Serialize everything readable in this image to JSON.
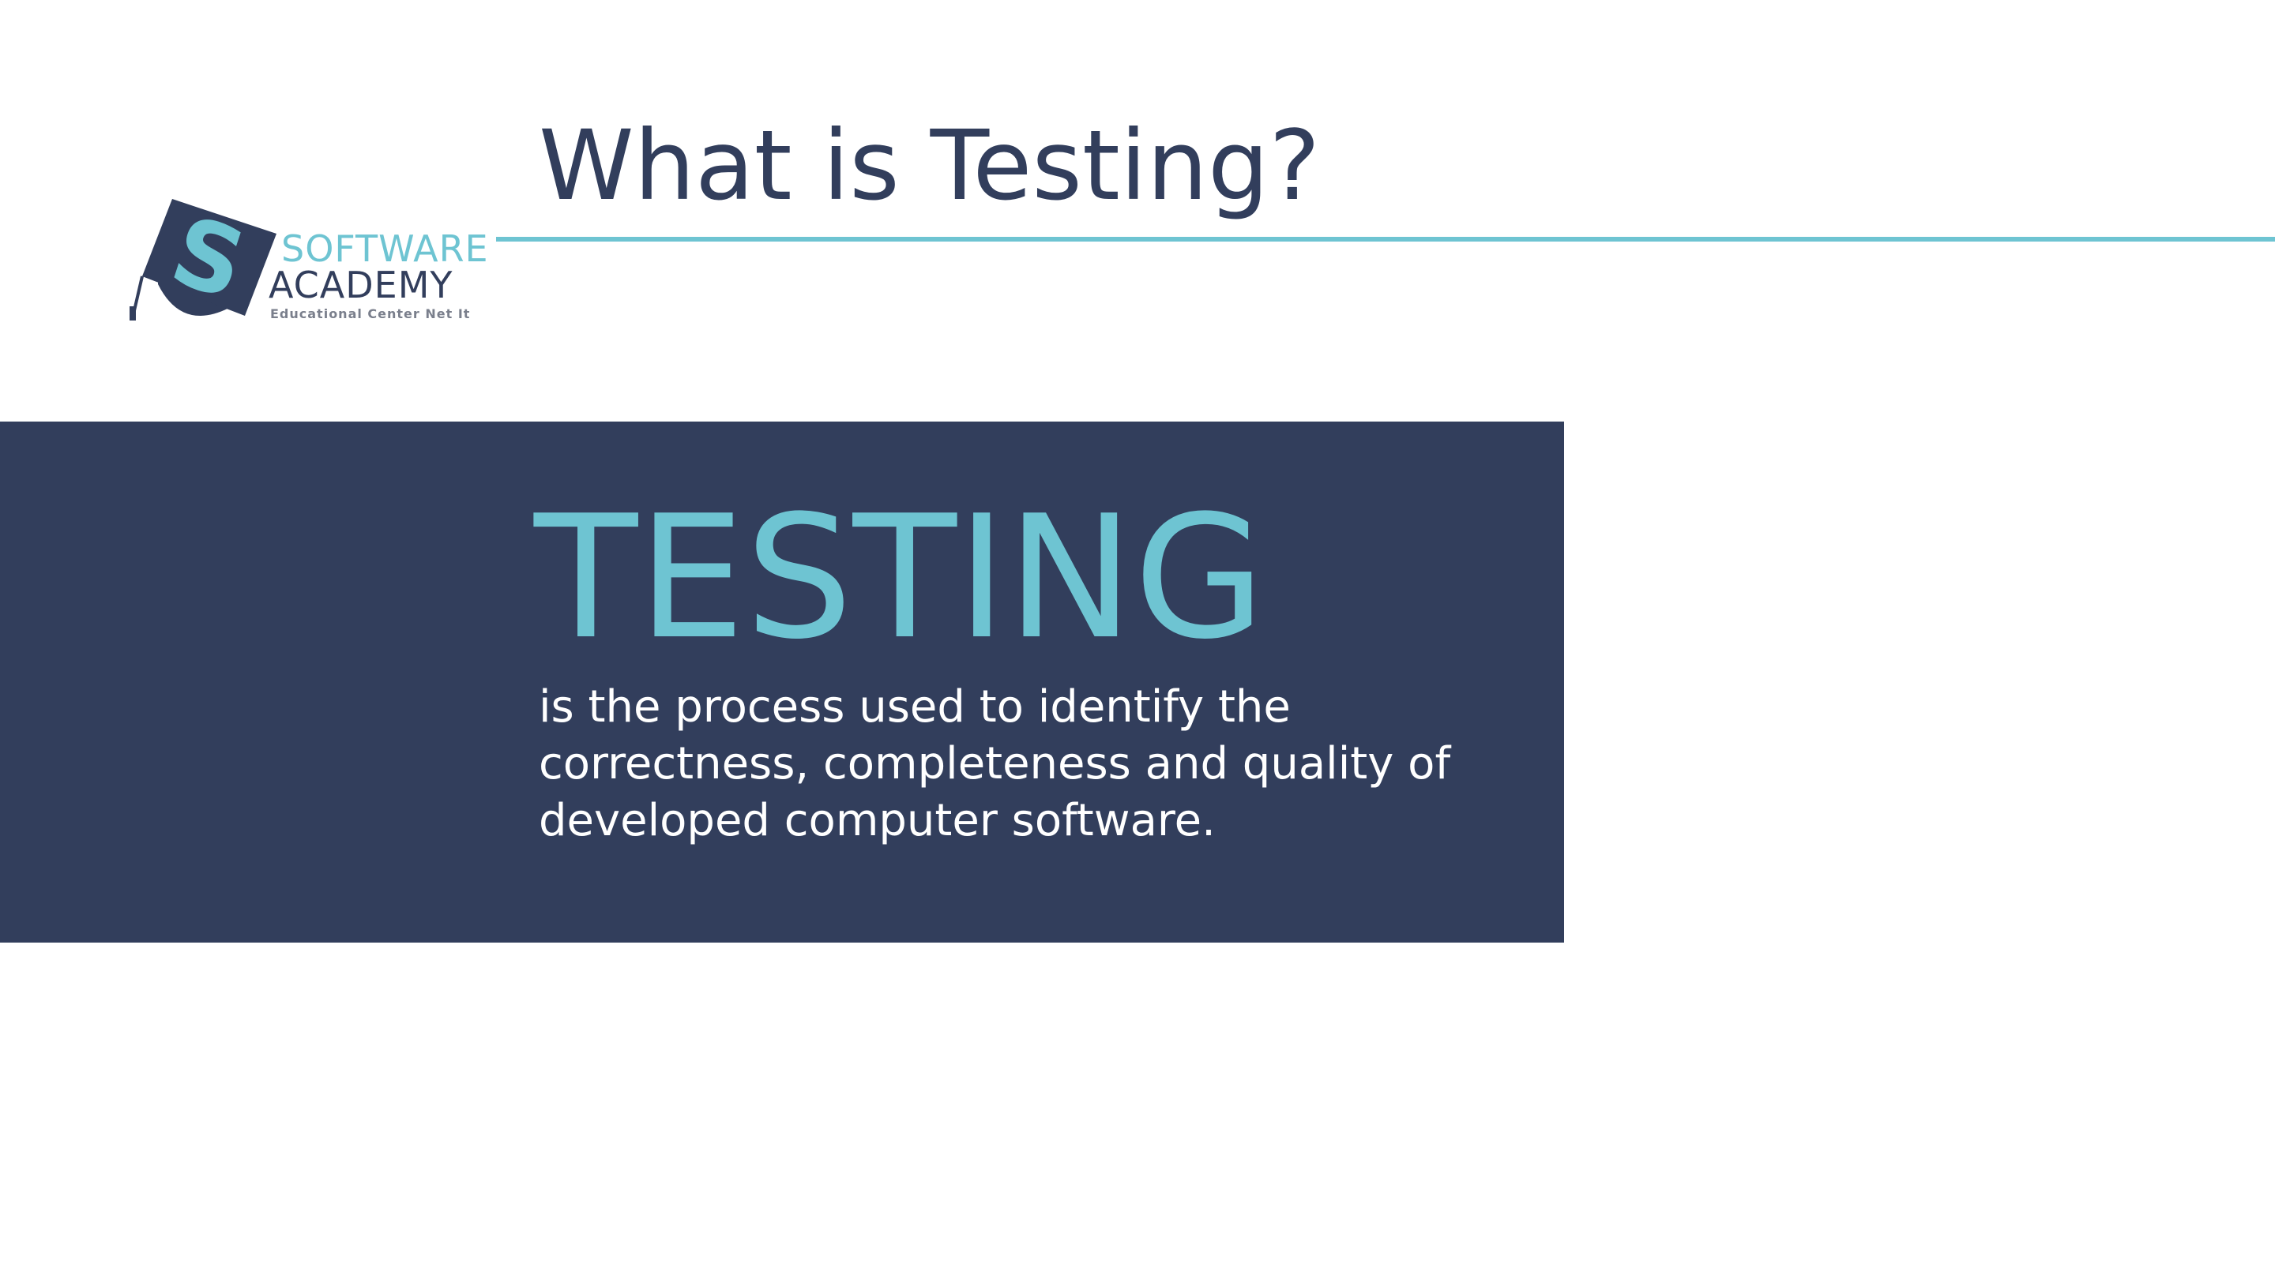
{
  "slide": {
    "title": "What is Testing?",
    "logo": {
      "line1": "SOFTWARE",
      "line2": "ACADEMY",
      "line3": "Educational Center Net It",
      "emblem_letter": "S"
    },
    "panel": {
      "headline": "TESTING",
      "definition": "is the process used to identify the correctness, completeness and quality of developed computer software."
    }
  },
  "colors": {
    "navy": "#323e5c",
    "teal": "#6ec4d2",
    "background": "#ffffff",
    "definition_text": "#ffffff",
    "logo_subtext": "#7a7f8c"
  },
  "icons": {
    "logo_emblem": "graduation-cap-icon"
  }
}
